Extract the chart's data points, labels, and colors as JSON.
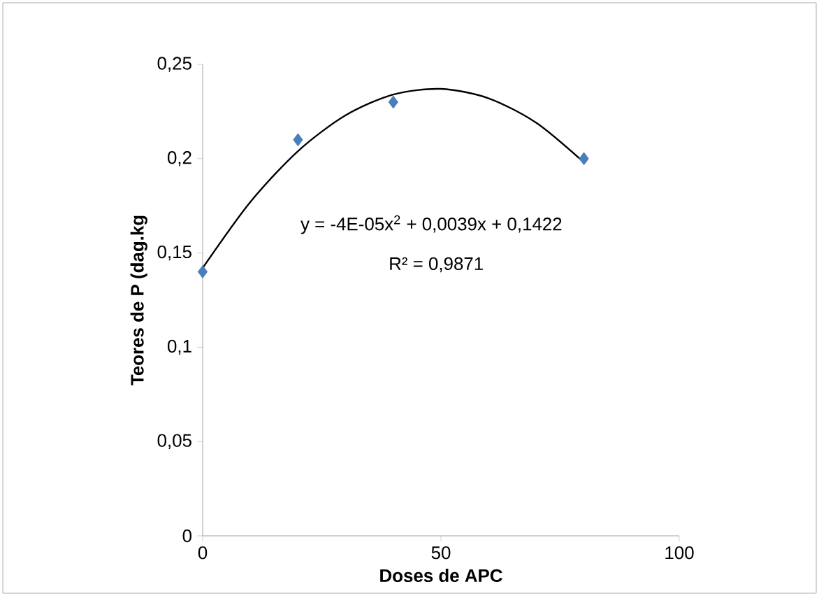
{
  "chart_data": {
    "type": "scatter",
    "xlabel": "Doses de APC",
    "ylabel": "Teores de P (dag.kg",
    "xlim": [
      0,
      100
    ],
    "xticks": [
      0,
      50,
      100
    ],
    "ylim": [
      0,
      0.25
    ],
    "yticks": [
      0,
      {
        "value": 0.05,
        "label": "0,05"
      },
      {
        "value": 0.1,
        "label": "0,1"
      },
      {
        "value": 0.15,
        "label": "0,15"
      },
      {
        "value": 0.2,
        "label": "0,2"
      },
      {
        "value": 0.25,
        "label": "0,25"
      }
    ],
    "series": [
      {
        "color": "#4a7ebb",
        "marker": "diamond",
        "x": [
          0,
          20,
          40,
          80
        ],
        "values": [
          0.14,
          0.21,
          0.23,
          0.2
        ]
      },
      {
        "type": "line",
        "color": "#000000",
        "marker": "none",
        "x": [
          0,
          10,
          20,
          30,
          40,
          50,
          60,
          70,
          80
        ],
        "values": [
          0.142,
          0.177,
          0.204,
          0.223,
          0.234,
          0.237,
          0.232,
          0.219,
          0.198
        ]
      }
    ],
    "annotations": [
      "y = -4E-05x$^{2}$ + 0,0039x + 0,1422",
      "R² = 0,9871"
    ],
    "grid": false
  }
}
